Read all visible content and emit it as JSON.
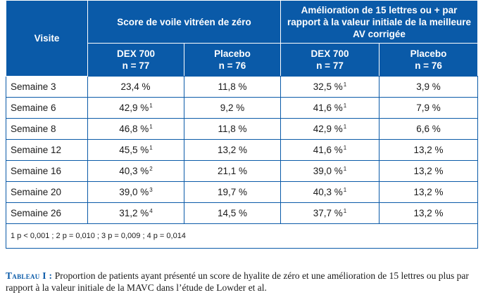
{
  "table": {
    "header_visit": "Visite",
    "group1": "Score de voile vitréen de zéro",
    "group2": "Amélioration de 15 lettres ou + par rapport à la valeur initiale de la meilleure AV corrigée",
    "sub": [
      {
        "name": "DEX 700",
        "n": "n = 77"
      },
      {
        "name": "Placebo",
        "n": "n = 76"
      },
      {
        "name": "DEX 700",
        "n": "n = 77"
      },
      {
        "name": "Placebo",
        "n": "n = 76"
      }
    ],
    "rows": [
      {
        "visit": "Semaine 3",
        "c1": "23,4 %",
        "c1s": "",
        "c2": "11,8 %",
        "c3": "32,5 %",
        "c3s": "1",
        "c4": "3,9 %"
      },
      {
        "visit": "Semaine 6",
        "c1": "42,9 %",
        "c1s": "1",
        "c2": "9,2 %",
        "c3": "41,6 %",
        "c3s": "1",
        "c4": "7,9 %"
      },
      {
        "visit": "Semaine 8",
        "c1": "46,8 %",
        "c1s": "1",
        "c2": "11,8 %",
        "c3": "42,9 %",
        "c3s": "1",
        "c4": "6,6 %"
      },
      {
        "visit": "Semaine 12",
        "c1": "45,5 %",
        "c1s": "1",
        "c2": "13,2 %",
        "c3": "41,6 %",
        "c3s": "1",
        "c4": "13,2 %"
      },
      {
        "visit": "Semaine 16",
        "c1": "40,3 %",
        "c1s": "2",
        "c2": "21,1 %",
        "c3": "39,0 %",
        "c3s": "1",
        "c4": "13,2 %"
      },
      {
        "visit": "Semaine 20",
        "c1": "39,0 %",
        "c1s": "3",
        "c2": "19,7 %",
        "c3": "40,3 %",
        "c3s": "1",
        "c4": "13,2 %"
      },
      {
        "visit": "Semaine 26",
        "c1": "31,2 %",
        "c1s": "4",
        "c2": "14,5 %",
        "c3": "37,7 %",
        "c3s": "1",
        "c4": "13,2 %"
      }
    ],
    "footnote": "1 p < 0,001 ; 2 p = 0,010 ; 3 p = 0,009 ; 4 p = 0,014"
  },
  "caption": {
    "label": "Tableau I :",
    "text": " Proportion de patients ayant présenté un score de hyalite de zéro et une amélioration de 15 lettres ou plus par rapport à la valeur initiale de la MAVC dans l’étude de Lowder et al."
  },
  "colors": {
    "header_bg": "#0a5aa8",
    "border": "#0a5aa8"
  }
}
